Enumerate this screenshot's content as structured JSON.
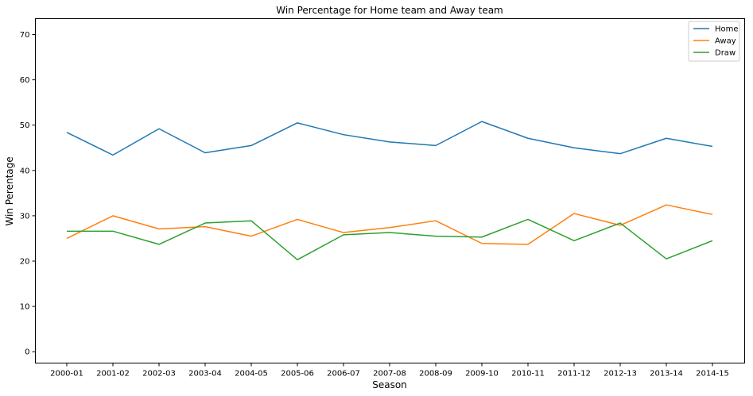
{
  "chart_data": {
    "type": "line",
    "title": "Win Percentage for Home team and Away team",
    "xlabel": "Season",
    "ylabel": "Win Perentage",
    "categories": [
      "2000-01",
      "2001-02",
      "2002-03",
      "2003-04",
      "2004-05",
      "2005-06",
      "2006-07",
      "2007-08",
      "2008-09",
      "2009-10",
      "2010-11",
      "2011-12",
      "2012-13",
      "2013-14",
      "2014-15"
    ],
    "ylim": [
      -2.5,
      73.5
    ],
    "yticks": [
      0,
      10,
      20,
      30,
      40,
      50,
      60,
      70
    ],
    "grid": false,
    "legend_position": "top-right",
    "series": [
      {
        "name": "Home",
        "color": "#1f77b4",
        "values": [
          48.4,
          43.4,
          49.2,
          43.9,
          45.5,
          50.5,
          47.9,
          46.3,
          45.5,
          50.8,
          47.1,
          45.0,
          43.7,
          47.1,
          45.3
        ]
      },
      {
        "name": "Away",
        "color": "#ff7f0e",
        "values": [
          25.0,
          30.0,
          27.1,
          27.6,
          25.5,
          29.2,
          26.3,
          27.4,
          28.9,
          23.9,
          23.7,
          30.5,
          27.9,
          32.4,
          30.3
        ]
      },
      {
        "name": "Draw",
        "color": "#2ca02c",
        "values": [
          26.6,
          26.6,
          23.7,
          28.4,
          28.9,
          20.3,
          25.8,
          26.3,
          25.5,
          25.3,
          29.2,
          24.5,
          28.4,
          20.5,
          24.5
        ]
      }
    ]
  }
}
